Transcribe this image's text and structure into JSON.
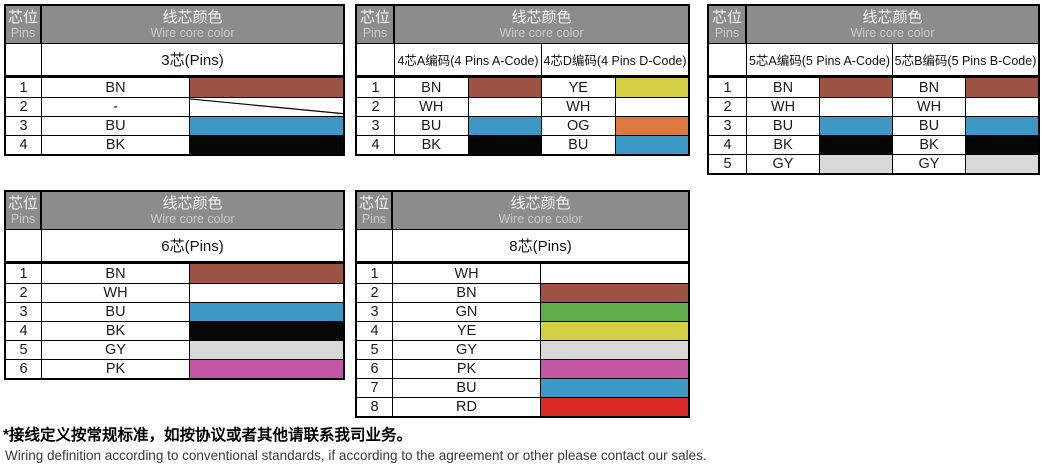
{
  "header": {
    "pins_zh": "芯位",
    "pins_en": "Pins",
    "color_zh": "线芯颜色",
    "color_en": "Wire core color"
  },
  "colors": {
    "header_bg": "#8c8c8c",
    "swatches": {
      "BN": "#9c5343",
      "WH": "#ffffff",
      "BU": "#3c99c6",
      "BK": "#060606",
      "GY": "#d8d8d8",
      "PK": "#c357a6",
      "GN": "#5fae4b",
      "YE": "#d5cf45",
      "OG": "#dc7941",
      "RD": "#dc2a26",
      "NONE": "#ffffff"
    }
  },
  "tables": [
    {
      "name": "3-pin",
      "variant": "single",
      "subheaders": [
        "3芯(Pins)"
      ],
      "rows": [
        {
          "pin": "1",
          "cells": [
            {
              "code": "BN",
              "color": "BN"
            }
          ]
        },
        {
          "pin": "2",
          "cells": [
            {
              "code": "-",
              "color": "NONE",
              "slash": true
            }
          ]
        },
        {
          "pin": "3",
          "cells": [
            {
              "code": "BU",
              "color": "BU"
            }
          ]
        },
        {
          "pin": "4",
          "cells": [
            {
              "code": "BK",
              "color": "BK"
            }
          ]
        }
      ]
    },
    {
      "name": "4-pin",
      "variant": "dual",
      "subheaders": [
        "4芯A编码(4 Pins A-Code)",
        "4芯D编码(4 Pins D-Code)"
      ],
      "rows": [
        {
          "pin": "1",
          "cells": [
            {
              "code": "BN",
              "color": "BN"
            },
            {
              "code": "YE",
              "color": "YE"
            }
          ]
        },
        {
          "pin": "2",
          "cells": [
            {
              "code": "WH",
              "color": "WH"
            },
            {
              "code": "WH",
              "color": "WH"
            }
          ]
        },
        {
          "pin": "3",
          "cells": [
            {
              "code": "BU",
              "color": "BU"
            },
            {
              "code": "OG",
              "color": "OG"
            }
          ]
        },
        {
          "pin": "4",
          "cells": [
            {
              "code": "BK",
              "color": "BK"
            },
            {
              "code": "BU",
              "color": "BU"
            }
          ]
        }
      ]
    },
    {
      "name": "5-pin",
      "variant": "dual",
      "subheaders": [
        "5芯A编码(5 Pins A-Code)",
        "5芯B编码(5 Pins B-Code)"
      ],
      "rows": [
        {
          "pin": "1",
          "cells": [
            {
              "code": "BN",
              "color": "BN"
            },
            {
              "code": "BN",
              "color": "BN"
            }
          ]
        },
        {
          "pin": "2",
          "cells": [
            {
              "code": "WH",
              "color": "WH"
            },
            {
              "code": "WH",
              "color": "WH"
            }
          ]
        },
        {
          "pin": "3",
          "cells": [
            {
              "code": "BU",
              "color": "BU"
            },
            {
              "code": "BU",
              "color": "BU"
            }
          ]
        },
        {
          "pin": "4",
          "cells": [
            {
              "code": "BK",
              "color": "BK"
            },
            {
              "code": "BK",
              "color": "BK"
            }
          ]
        },
        {
          "pin": "5",
          "cells": [
            {
              "code": "GY",
              "color": "GY"
            },
            {
              "code": "GY",
              "color": "GY"
            }
          ]
        }
      ]
    },
    {
      "name": "6-pin",
      "variant": "single",
      "subheaders": [
        "6芯(Pins)"
      ],
      "rows": [
        {
          "pin": "1",
          "cells": [
            {
              "code": "BN",
              "color": "BN"
            }
          ]
        },
        {
          "pin": "2",
          "cells": [
            {
              "code": "WH",
              "color": "WH"
            }
          ]
        },
        {
          "pin": "3",
          "cells": [
            {
              "code": "BU",
              "color": "BU"
            }
          ]
        },
        {
          "pin": "4",
          "cells": [
            {
              "code": "BK",
              "color": "BK"
            }
          ]
        },
        {
          "pin": "5",
          "cells": [
            {
              "code": "GY",
              "color": "GY"
            }
          ]
        },
        {
          "pin": "6",
          "cells": [
            {
              "code": "PK",
              "color": "PK"
            }
          ]
        }
      ]
    },
    {
      "name": "8-pin",
      "variant": "single",
      "subheaders": [
        "8芯(Pins)"
      ],
      "rows": [
        {
          "pin": "1",
          "cells": [
            {
              "code": "WH",
              "color": "WH"
            }
          ]
        },
        {
          "pin": "2",
          "cells": [
            {
              "code": "BN",
              "color": "BN"
            }
          ]
        },
        {
          "pin": "3",
          "cells": [
            {
              "code": "GN",
              "color": "GN"
            }
          ]
        },
        {
          "pin": "4",
          "cells": [
            {
              "code": "YE",
              "color": "YE"
            }
          ]
        },
        {
          "pin": "5",
          "cells": [
            {
              "code": "GY",
              "color": "GY"
            }
          ]
        },
        {
          "pin": "6",
          "cells": [
            {
              "code": "PK",
              "color": "PK"
            }
          ]
        },
        {
          "pin": "7",
          "cells": [
            {
              "code": "BU",
              "color": "BU"
            }
          ]
        },
        {
          "pin": "8",
          "cells": [
            {
              "code": "RD",
              "color": "RD"
            }
          ]
        }
      ]
    }
  ],
  "footer": {
    "note_zh": "*接线定义按常规标准，如按协议或者其他请联系我司业务。",
    "note_en": "Wiring definition according to conventional standards, if according to the agreement or other please contact our sales."
  }
}
